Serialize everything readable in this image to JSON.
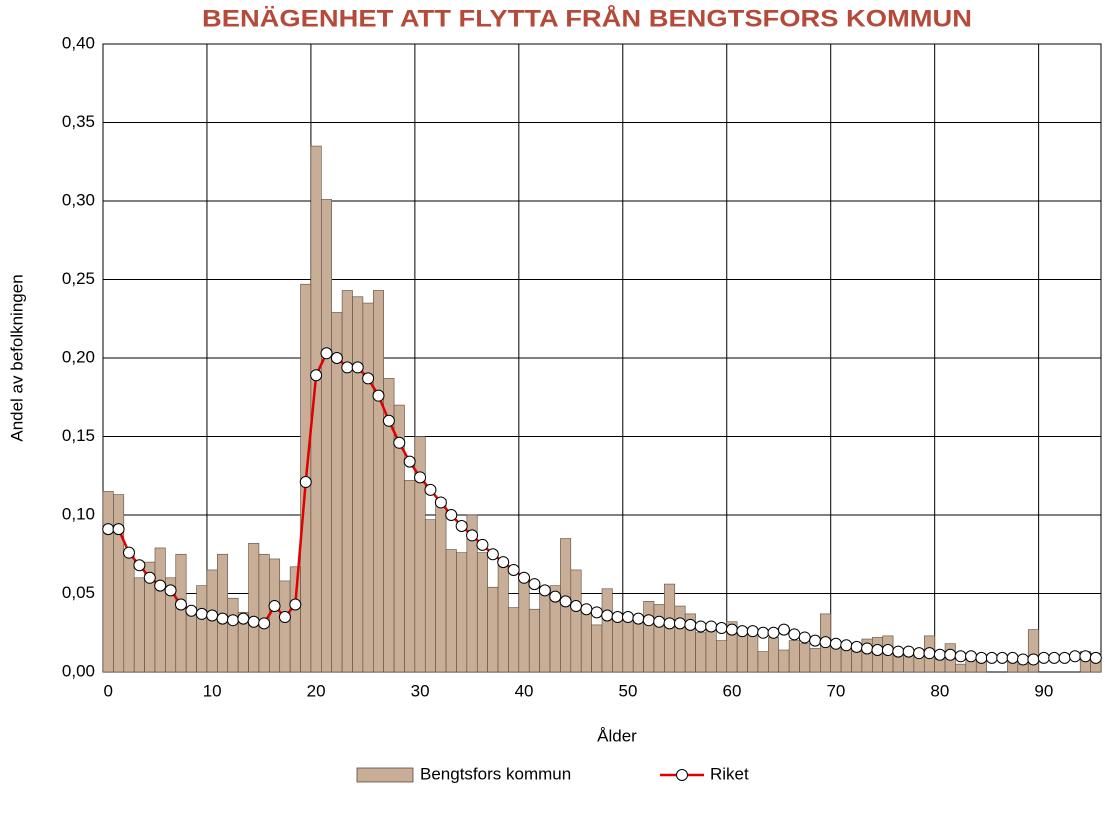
{
  "chart_data": {
    "type": "bar_line",
    "title": "BENÄGENHET ATT FLYTTA FRÅN BENGTSFORS KOMMUN",
    "x_label": "Ålder",
    "y_label": "Andel av befolkningen",
    "categories": [
      0,
      null,
      null,
      null,
      null,
      null,
      null,
      null,
      null,
      null,
      10,
      null,
      null,
      null,
      null,
      null,
      null,
      null,
      null,
      null,
      20,
      null,
      null,
      null,
      null,
      null,
      null,
      null,
      null,
      null,
      30,
      null,
      null,
      null,
      null,
      null,
      null,
      null,
      null,
      null,
      40,
      null,
      null,
      null,
      null,
      null,
      null,
      null,
      null,
      null,
      50,
      null,
      null,
      null,
      null,
      null,
      null,
      null,
      null,
      null,
      60,
      null,
      null,
      null,
      null,
      null,
      null,
      null,
      null,
      null,
      70,
      null,
      null,
      null,
      null,
      null,
      null,
      null,
      null,
      null,
      80,
      null,
      null,
      null,
      null,
      null,
      null,
      null,
      null,
      null,
      90,
      null,
      null,
      null,
      null,
      null
    ],
    "series": [
      {
        "name": "Bengtsfors kommun",
        "type": "bar",
        "color": "#c9ae97",
        "values": [
          0.115,
          0.113,
          0.075,
          0.06,
          0.07,
          0.079,
          0.06,
          0.075,
          0.04,
          0.055,
          0.065,
          0.075,
          0.047,
          0.038,
          0.082,
          0.075,
          0.072,
          0.058,
          0.067,
          0.247,
          0.335,
          0.301,
          0.229,
          0.243,
          0.239,
          0.235,
          0.243,
          0.187,
          0.17,
          0.122,
          0.15,
          0.097,
          0.11,
          0.078,
          0.076,
          0.1,
          0.076,
          0.054,
          0.068,
          0.041,
          0.058,
          0.04,
          0.052,
          0.055,
          0.085,
          0.065,
          0.04,
          0.03,
          0.053,
          0.035,
          0.035,
          0.035,
          0.045,
          0.043,
          0.056,
          0.042,
          0.037,
          0.025,
          0.027,
          0.02,
          0.032,
          0.026,
          0.027,
          0.013,
          0.022,
          0.014,
          0.02,
          0.018,
          0.015,
          0.037,
          0.018,
          0.016,
          0.013,
          0.021,
          0.022,
          0.023,
          0.014,
          0.012,
          0.012,
          0.023,
          0.008,
          0.018,
          0.005,
          0.011,
          0.007,
          0.0,
          0.0,
          0.007,
          0.005,
          0.027,
          0.0,
          0.0,
          0.0,
          0.0,
          0.013,
          0.012
        ]
      },
      {
        "name": "Riket",
        "type": "line",
        "color": "#e00000",
        "values": [
          0.091,
          0.091,
          0.076,
          0.068,
          0.06,
          0.055,
          0.052,
          0.043,
          0.039,
          0.037,
          0.036,
          0.034,
          0.033,
          0.034,
          0.032,
          0.031,
          0.042,
          0.035,
          0.043,
          0.121,
          0.189,
          0.203,
          0.2,
          0.194,
          0.194,
          0.187,
          0.176,
          0.16,
          0.146,
          0.134,
          0.124,
          0.116,
          0.108,
          0.1,
          0.093,
          0.087,
          0.081,
          0.075,
          0.07,
          0.065,
          0.06,
          0.056,
          0.052,
          0.048,
          0.045,
          0.042,
          0.04,
          0.038,
          0.036,
          0.035,
          0.035,
          0.034,
          0.033,
          0.032,
          0.031,
          0.031,
          0.03,
          0.029,
          0.029,
          0.028,
          0.027,
          0.026,
          0.026,
          0.025,
          0.025,
          0.027,
          0.024,
          0.022,
          0.02,
          0.019,
          0.018,
          0.017,
          0.016,
          0.015,
          0.014,
          0.014,
          0.013,
          0.013,
          0.012,
          0.012,
          0.011,
          0.011,
          0.01,
          0.01,
          0.009,
          0.009,
          0.009,
          0.009,
          0.008,
          0.008,
          0.009,
          0.009,
          0.009,
          0.01,
          0.01,
          0.009
        ]
      }
    ],
    "ylim": [
      0,
      0.4
    ],
    "yticks": [
      {
        "value": 0,
        "label": "0,00"
      },
      {
        "value": 0.05,
        "label": "0,05"
      },
      {
        "value": 0.1,
        "label": "0,10"
      },
      {
        "value": 0.15,
        "label": "0,15"
      },
      {
        "value": 0.2,
        "label": "0,20"
      },
      {
        "value": 0.25,
        "label": "0,25"
      },
      {
        "value": 0.3,
        "label": "0,30"
      },
      {
        "value": 0.35,
        "label": "0,35"
      },
      {
        "value": 0.4,
        "label": "0,40"
      }
    ],
    "grid": true,
    "legend": "bottom"
  }
}
